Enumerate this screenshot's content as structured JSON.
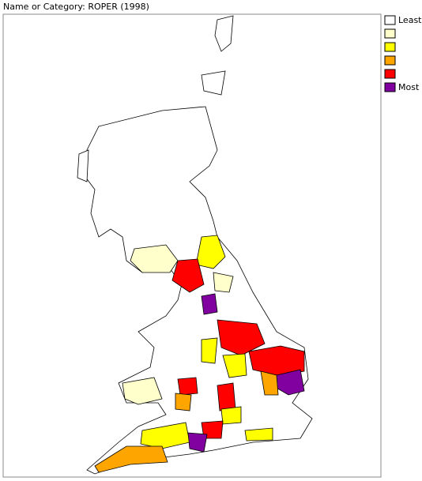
{
  "header": {
    "title": "Name or Category: ROPER (1998)"
  },
  "legend": {
    "items": [
      {
        "color": "#ffffff",
        "label": "Least"
      },
      {
        "color": "#ffffcc"
      },
      {
        "color": "#ffff00"
      },
      {
        "color": "#ffa500"
      },
      {
        "color": "#ff0000"
      },
      {
        "color": "#8000a0",
        "label": "Most"
      }
    ]
  }
}
